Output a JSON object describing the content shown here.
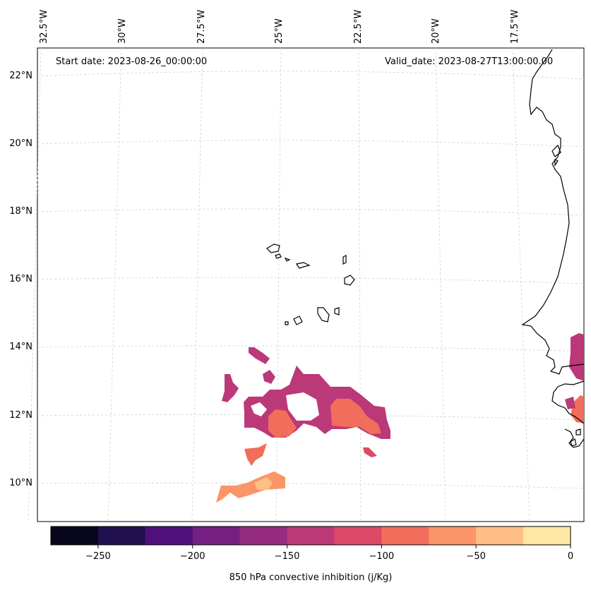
{
  "map": {
    "start_date": "Start date: 2023-08-26_00:00:00",
    "valid_date": "Valid_date: 2023-08-27T13:00:00.00",
    "lon_labels": [
      "32.5°W",
      "30°W",
      "27.5°W",
      "25°W",
      "22.5°W",
      "20°W",
      "17.5°W"
    ],
    "lat_labels": [
      "22°N",
      "20°N",
      "18°N",
      "16°N",
      "14°N",
      "12°N",
      "10°N"
    ]
  },
  "colorbar": {
    "label": "850 hPa convective inhibition (j/Kg)",
    "ticks": [
      "−250",
      "−200",
      "−150",
      "−100",
      "−50",
      "0"
    ],
    "bins": [
      -275,
      -250,
      -225,
      -200,
      -175,
      -150,
      -125,
      -100,
      -75,
      -50,
      -25,
      0
    ],
    "colors": [
      "#08061c",
      "#221150",
      "#4e117b",
      "#751f81",
      "#952c80",
      "#bb3978",
      "#dd4a68",
      "#f06e5b",
      "#fb9567",
      "#febe84",
      "#fee7a5"
    ]
  },
  "colors": {
    "coast": "#000000",
    "grid": "#cccccc"
  }
}
